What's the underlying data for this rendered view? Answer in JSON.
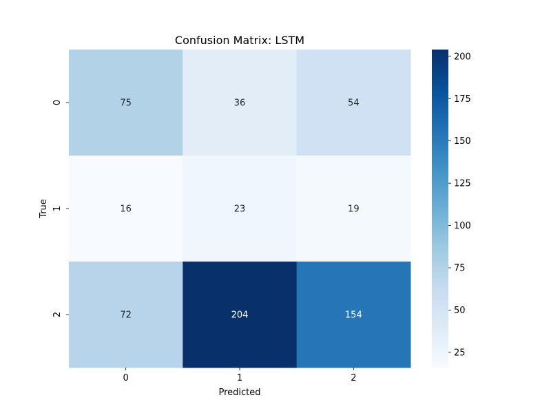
{
  "chart_data": {
    "type": "heatmap",
    "title": "Confusion Matrix: LSTM",
    "xlabel": "Predicted",
    "ylabel": "True",
    "x_categories": [
      "0",
      "1",
      "2"
    ],
    "y_categories": [
      "0",
      "1",
      "2"
    ],
    "values": [
      [
        75,
        36,
        54
      ],
      [
        16,
        23,
        19
      ],
      [
        72,
        204,
        154
      ]
    ],
    "colormap": "Blues",
    "color_range": [
      16,
      204
    ],
    "colorbar_ticks": [
      25,
      50,
      75,
      100,
      125,
      150,
      175,
      200
    ]
  }
}
